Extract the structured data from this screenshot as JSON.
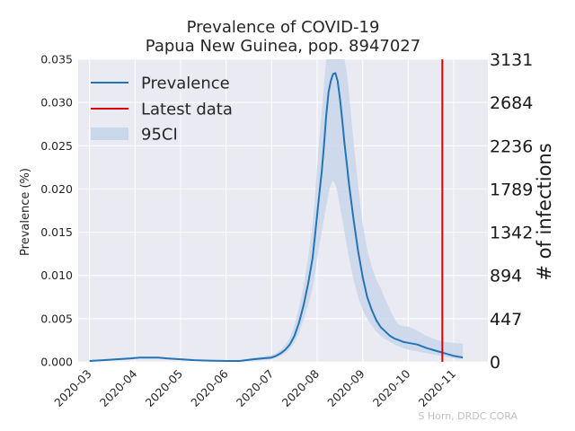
{
  "chart_data": {
    "type": "line",
    "title": "Prevalence of COVID-19",
    "subtitle": "Papua New Guinea, pop. 8947027",
    "ylabel": "Prevalence (%)",
    "ylabel_right": "# of infections",
    "ylim": [
      0,
      0.035
    ],
    "yticks": [
      "0.000",
      "0.005",
      "0.010",
      "0.015",
      "0.020",
      "0.025",
      "0.030",
      "0.035"
    ],
    "right_ticks": [
      "0",
      "447",
      "894",
      "1342",
      "1789",
      "2236",
      "2684",
      "3131"
    ],
    "xlim": [
      -0.25,
      8.75
    ],
    "xticks": [
      "2020-03",
      "2020-04",
      "2020-05",
      "2020-06",
      "2020-07",
      "2020-08",
      "2020-09",
      "2020-10",
      "2020-11"
    ],
    "latest_data_x": 7.75,
    "legend": [
      "Prevalence",
      "Latest data",
      "95CI"
    ],
    "legend_position": "top-left",
    "credit": "S Horn, DRDC CORA",
    "colors": {
      "line": "#2474b5",
      "latest": "#e00000",
      "band": "#c9d7eb",
      "background": "#eaeaf2",
      "grid": "#ffffff"
    },
    "series": [
      {
        "name": "Prevalence",
        "x": [
          0.0,
          0.3,
          0.6,
          0.9,
          1.1,
          1.3,
          1.5,
          1.7,
          2.0,
          2.3,
          2.6,
          3.0,
          3.3,
          3.6,
          3.8,
          4.0,
          4.1,
          4.2,
          4.3,
          4.4,
          4.5,
          4.6,
          4.7,
          4.8,
          4.9,
          4.95,
          5.0,
          5.05,
          5.1,
          5.15,
          5.2,
          5.25,
          5.3,
          5.35,
          5.4,
          5.45,
          5.5,
          5.55,
          5.6,
          5.65,
          5.7,
          5.8,
          5.9,
          6.0,
          6.1,
          6.2,
          6.3,
          6.4,
          6.5,
          6.6,
          6.7,
          6.8,
          6.9,
          7.0,
          7.2,
          7.4,
          7.6,
          7.8,
          8.0,
          8.2
        ],
        "y": [
          0.0001,
          0.0002,
          0.0003,
          0.0004,
          0.0005,
          0.0005,
          0.0005,
          0.0004,
          0.0003,
          0.0002,
          0.00015,
          0.0001,
          0.0001,
          0.0003,
          0.0004,
          0.0005,
          0.0007,
          0.001,
          0.0014,
          0.002,
          0.003,
          0.0045,
          0.0065,
          0.009,
          0.012,
          0.0145,
          0.017,
          0.0195,
          0.022,
          0.025,
          0.0285,
          0.0312,
          0.0325,
          0.0333,
          0.0334,
          0.0325,
          0.0305,
          0.028,
          0.0253,
          0.023,
          0.0205,
          0.0165,
          0.0128,
          0.0098,
          0.0075,
          0.006,
          0.0048,
          0.004,
          0.0035,
          0.003,
          0.0027,
          0.0025,
          0.0023,
          0.0022,
          0.002,
          0.0016,
          0.0013,
          0.001,
          0.0007,
          0.0005
        ]
      },
      {
        "name": "95CI",
        "x": [
          0.0,
          0.3,
          0.6,
          0.9,
          1.1,
          1.3,
          1.5,
          1.7,
          2.0,
          2.3,
          2.6,
          3.0,
          3.3,
          3.6,
          3.8,
          4.0,
          4.1,
          4.2,
          4.3,
          4.4,
          4.5,
          4.6,
          4.7,
          4.8,
          4.9,
          4.95,
          5.0,
          5.05,
          5.1,
          5.15,
          5.2,
          5.25,
          5.3,
          5.35,
          5.4,
          5.45,
          5.5,
          5.55,
          5.6,
          5.65,
          5.7,
          5.8,
          5.9,
          6.0,
          6.1,
          6.2,
          6.3,
          6.4,
          6.5,
          6.6,
          6.7,
          6.8,
          6.9,
          7.0,
          7.2,
          7.4,
          7.6,
          7.8,
          8.0,
          8.2
        ],
        "lower": [
          0.0,
          0.0001,
          0.0002,
          0.0003,
          0.0004,
          0.0004,
          0.0004,
          0.0003,
          0.0002,
          0.0001,
          0.0001,
          0.0,
          0.0,
          0.0001,
          0.0002,
          0.0003,
          0.0005,
          0.0007,
          0.001,
          0.0015,
          0.0022,
          0.0033,
          0.0048,
          0.0065,
          0.0085,
          0.01,
          0.012,
          0.0135,
          0.015,
          0.0165,
          0.018,
          0.0195,
          0.0205,
          0.021,
          0.0205,
          0.0195,
          0.018,
          0.0165,
          0.015,
          0.0135,
          0.012,
          0.0095,
          0.0075,
          0.006,
          0.005,
          0.0042,
          0.0035,
          0.003,
          0.0026,
          0.0023,
          0.002,
          0.0018,
          0.0016,
          0.0014,
          0.0012,
          0.001,
          0.0008,
          0.0006,
          0.0004,
          0.0003
        ],
        "upper": [
          0.0002,
          0.0003,
          0.0004,
          0.0005,
          0.0006,
          0.0006,
          0.0006,
          0.0005,
          0.0004,
          0.0003,
          0.0002,
          0.0002,
          0.0002,
          0.0005,
          0.0006,
          0.0008,
          0.001,
          0.0014,
          0.002,
          0.0028,
          0.0042,
          0.0062,
          0.0088,
          0.012,
          0.016,
          0.019,
          0.0225,
          0.026,
          0.029,
          0.032,
          0.035,
          0.035,
          0.035,
          0.035,
          0.035,
          0.035,
          0.035,
          0.035,
          0.035,
          0.0335,
          0.031,
          0.0255,
          0.0205,
          0.016,
          0.013,
          0.011,
          0.0095,
          0.0085,
          0.0072,
          0.006,
          0.005,
          0.0043,
          0.0041,
          0.0041,
          0.0036,
          0.003,
          0.0026,
          0.0023,
          0.0022,
          0.0021
        ]
      }
    ]
  }
}
